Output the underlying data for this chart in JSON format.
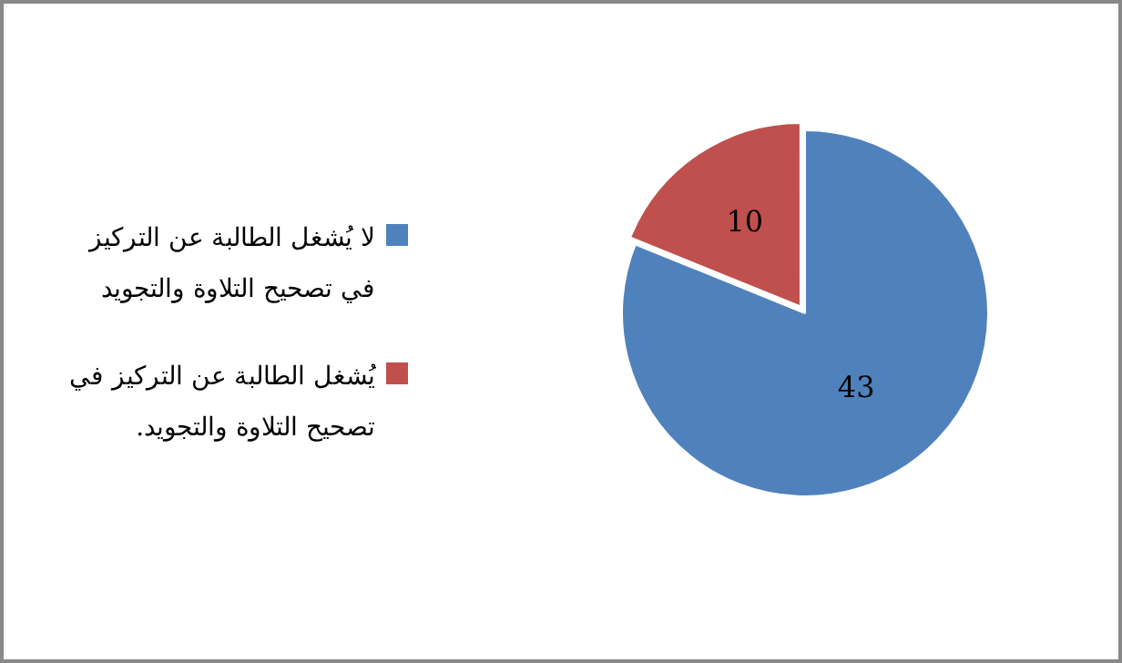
{
  "chart_data": {
    "type": "pie",
    "categories": [
      "لا يُشغل الطالبة عن التركيز في تصحيح التلاوة والتجويد",
      "يُشغل الطالبة عن التركيز في تصحيح التلاوة والتجويد."
    ],
    "values": [
      43,
      10
    ],
    "colors": [
      "#4f81bd",
      "#c0504d"
    ],
    "data_labels": true,
    "legend": "left"
  }
}
